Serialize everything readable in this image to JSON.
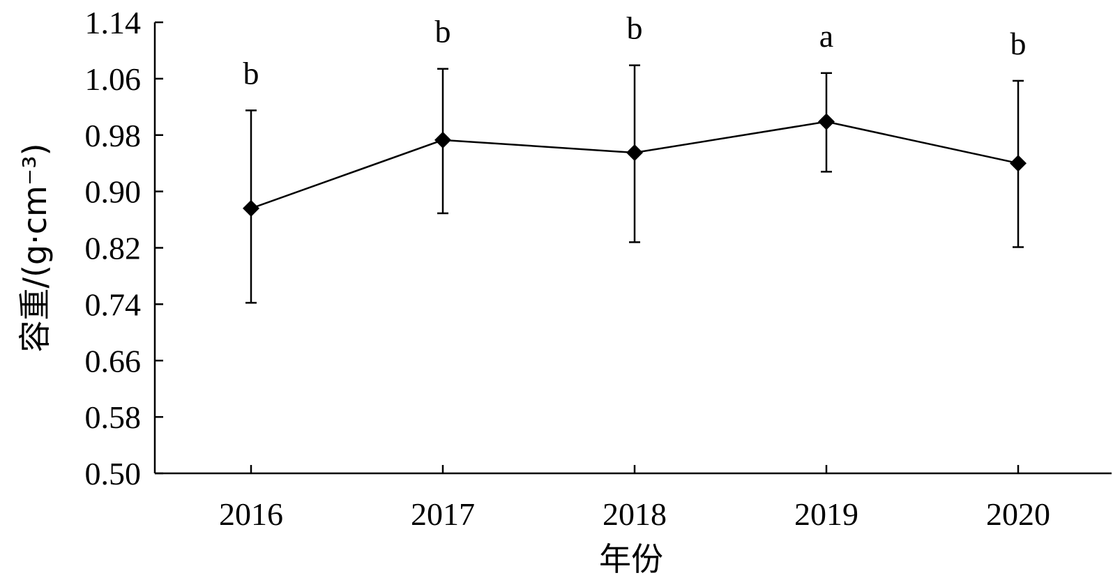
{
  "chart_data": {
    "type": "line",
    "title": "",
    "xlabel": "年份",
    "ylabel": "容重/(g·cm⁻³)",
    "ylim": [
      0.5,
      1.14
    ],
    "yticks": [
      "0.50",
      "0.58",
      "0.66",
      "0.74",
      "0.82",
      "0.90",
      "0.98",
      "1.06",
      "1.14"
    ],
    "categories": [
      "2016",
      "2017",
      "2018",
      "2019",
      "2020"
    ],
    "series": [
      {
        "values": [
          0.876,
          0.973,
          0.955,
          0.999,
          0.94
        ],
        "error_upper": [
          1.015,
          1.074,
          1.079,
          1.068,
          1.057
        ],
        "error_lower": [
          0.742,
          0.869,
          0.828,
          0.928,
          0.821
        ],
        "significance": [
          "b",
          "b",
          "b",
          "a",
          "b"
        ]
      }
    ],
    "marker": "diamond",
    "color": "#000000",
    "grid": false,
    "legend": "none"
  }
}
